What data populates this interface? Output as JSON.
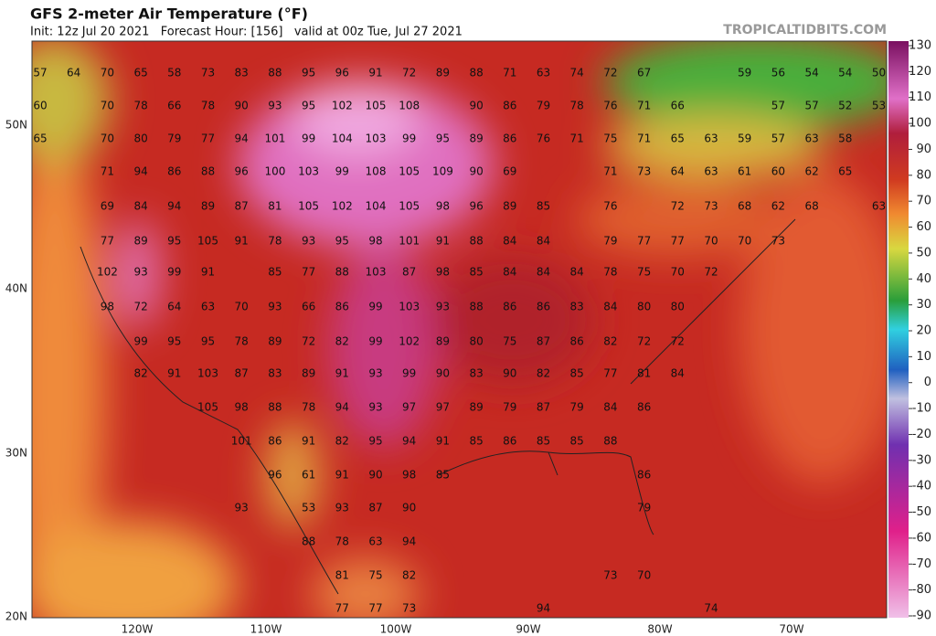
{
  "header": {
    "title": "GFS 2-meter Air Temperature (°F)",
    "subtitle": "Init: 12z Jul 20 2021   Forecast Hour: [156]   valid at 00z Tue, Jul 27 2021",
    "site": "TROPICALTIDBITS.COM"
  },
  "map": {
    "latitude_labels": [
      "50N",
      "40N",
      "30N",
      "20N"
    ],
    "longitude_labels": [
      "120W",
      "110W",
      "100W",
      "90W",
      "80W",
      "70W"
    ],
    "temperature_rows": [
      [
        57,
        64,
        70,
        65,
        58,
        73,
        83,
        88,
        95,
        96,
        91,
        72,
        89,
        88,
        71,
        63,
        74,
        72,
        67,
        59,
        56,
        54,
        54,
        50
      ],
      [
        60,
        70,
        78,
        66,
        78,
        90,
        93,
        95,
        102,
        105,
        108,
        90,
        86,
        79,
        78,
        76,
        71,
        66,
        57,
        57,
        52,
        53
      ],
      [
        65,
        70,
        80,
        79,
        77,
        94,
        101,
        99,
        104,
        103,
        99,
        95,
        89,
        86,
        76,
        71,
        75,
        71,
        65,
        63,
        59,
        57,
        63,
        58
      ],
      [
        71,
        94,
        86,
        88,
        96,
        100,
        103,
        99,
        108,
        105,
        109,
        90,
        69,
        71,
        73,
        64,
        63,
        61,
        60,
        62,
        65
      ],
      [
        69,
        84,
        94,
        89,
        87,
        81,
        105,
        102,
        104,
        105,
        98,
        96,
        89,
        85,
        76,
        72,
        73,
        68,
        62,
        68,
        63
      ],
      [
        77,
        89,
        95,
        105,
        91,
        78,
        93,
        95,
        98,
        101,
        91,
        88,
        84,
        84,
        79,
        77,
        77,
        70,
        70,
        73
      ],
      [
        102,
        93,
        99,
        91,
        85,
        77,
        88,
        103,
        87,
        98,
        85,
        84,
        84,
        84,
        78,
        75,
        70,
        72
      ],
      [
        98,
        72,
        64,
        63,
        70,
        93,
        66,
        86,
        99,
        103,
        93,
        88,
        86,
        86,
        83,
        84,
        80,
        80
      ],
      [
        99,
        95,
        95,
        78,
        89,
        72,
        82,
        99,
        102,
        89,
        80,
        75,
        87,
        86,
        82,
        72,
        72
      ],
      [
        82,
        91,
        103,
        87,
        83,
        89,
        91,
        93,
        99,
        90,
        83,
        90,
        82,
        85,
        77,
        81,
        84
      ],
      [
        105,
        98,
        88,
        78,
        94,
        93,
        97,
        97,
        89,
        79,
        87,
        79,
        84,
        86
      ],
      [
        101,
        86,
        91,
        82,
        95,
        94,
        91,
        85,
        86,
        85,
        85,
        88
      ],
      [
        96,
        61,
        91,
        90,
        98,
        85,
        86
      ],
      [
        93,
        53,
        93,
        87,
        90,
        79
      ],
      [
        88,
        78,
        63,
        94
      ],
      [
        81,
        75,
        82,
        73,
        70
      ],
      [
        77,
        77,
        73,
        94,
        74
      ]
    ]
  },
  "colorbar": {
    "lim": [
      -90,
      130
    ],
    "ticks": [
      130,
      120,
      110,
      100,
      90,
      80,
      70,
      60,
      50,
      40,
      30,
      20,
      10,
      0,
      -10,
      -20,
      -30,
      -40,
      -50,
      -60,
      -70,
      -80,
      -90
    ]
  }
}
